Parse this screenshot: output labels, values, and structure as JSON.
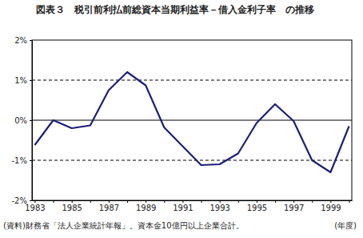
{
  "chart_data": {
    "type": "line",
    "title": "図表３　税引前利払前総資本当期利益率－借入金利子率　の推移",
    "categories": [
      "1983",
      null,
      "1985",
      null,
      "1987",
      null,
      "1989",
      null,
      "1991",
      null,
      "1993",
      null,
      "1995",
      null,
      "1997",
      null,
      "1999",
      null
    ],
    "values": [
      -0.62,
      0.0,
      -0.2,
      -0.13,
      0.75,
      1.2,
      0.87,
      -0.18,
      -0.65,
      -1.12,
      -1.1,
      -0.83,
      -0.07,
      0.4,
      -0.02,
      -1.0,
      -1.3,
      -0.15
    ],
    "color": "#1c1f7a",
    "ylim": [
      -2,
      2
    ],
    "yticks": [
      {
        "value": -2,
        "label": "-2%"
      },
      {
        "value": -1,
        "label": "-1%"
      },
      {
        "value": 0,
        "label": "0%"
      },
      {
        "value": 1,
        "label": "1%"
      },
      {
        "value": 2,
        "label": "2%"
      }
    ],
    "grid": true,
    "xlabel": "(年度)",
    "source": "(資料)財務省「法人企業統計年報」。資本金10億円以上企業合計。"
  }
}
